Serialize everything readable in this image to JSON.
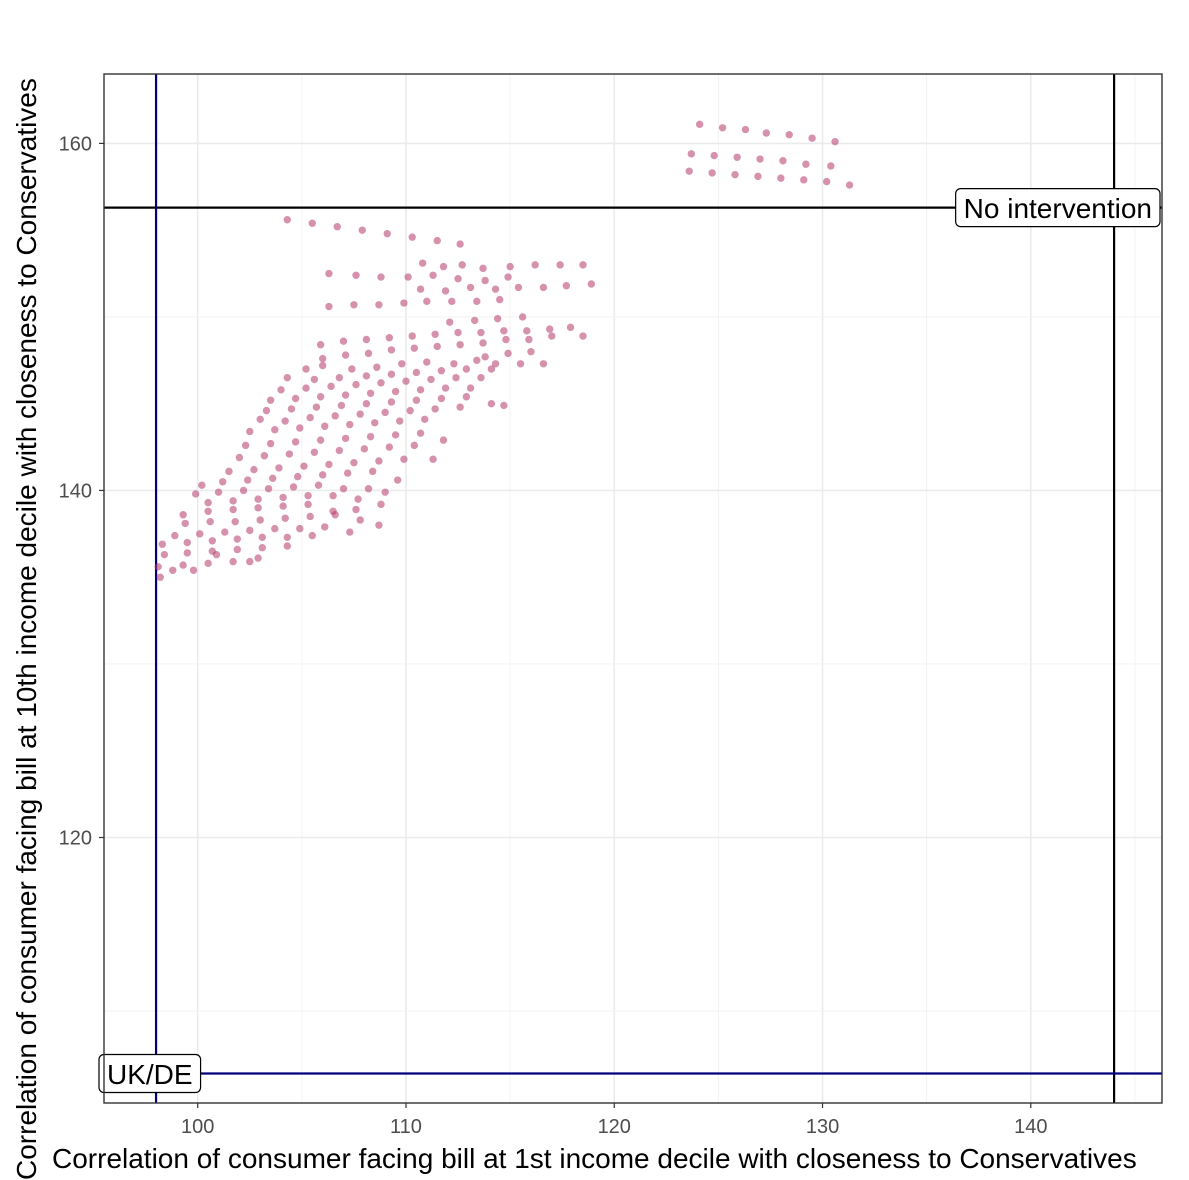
{
  "chart_data": {
    "type": "scatter",
    "title": "",
    "xlabel": "Correlation of consumer facing bill at 1st income decile with closeness to Conservatives",
    "ylabel": "Correlation of consumer facing bill at 10th income decile with closeness to Conservatives",
    "xlim": [
      95.5,
      146.3
    ],
    "ylim": [
      104.7,
      164.0
    ],
    "xticks": [
      100,
      110,
      120,
      130,
      140
    ],
    "yticks": [
      120,
      140,
      160
    ],
    "grid": true,
    "point_color": "#b5386a",
    "reference_lines": [
      {
        "label": "No intervention",
        "x": 144.0,
        "y": 156.3,
        "color": "#000000"
      },
      {
        "label": "UK/DE",
        "x": 98.0,
        "y": 106.4,
        "color": "#00007f"
      }
    ],
    "series": [
      {
        "points": [
          [
            124.1,
            161.1
          ],
          [
            125.2,
            160.9
          ],
          [
            126.3,
            160.8
          ],
          [
            127.3,
            160.6
          ],
          [
            128.4,
            160.5
          ],
          [
            129.5,
            160.3
          ],
          [
            130.6,
            160.1
          ],
          [
            123.7,
            159.4
          ],
          [
            124.8,
            159.3
          ],
          [
            125.9,
            159.2
          ],
          [
            127.0,
            159.1
          ],
          [
            128.1,
            159.0
          ],
          [
            129.2,
            158.8
          ],
          [
            130.4,
            158.7
          ],
          [
            123.6,
            158.4
          ],
          [
            124.7,
            158.3
          ],
          [
            125.8,
            158.2
          ],
          [
            126.9,
            158.1
          ],
          [
            128.0,
            158.0
          ],
          [
            129.1,
            157.9
          ],
          [
            130.2,
            157.8
          ],
          [
            131.3,
            157.6
          ],
          [
            104.3,
            155.6
          ],
          [
            105.5,
            155.4
          ],
          [
            106.7,
            155.2
          ],
          [
            107.9,
            155.0
          ],
          [
            109.1,
            154.8
          ],
          [
            110.3,
            154.6
          ],
          [
            111.5,
            154.4
          ],
          [
            112.6,
            154.2
          ],
          [
            110.8,
            153.1
          ],
          [
            111.8,
            152.9
          ],
          [
            112.7,
            153.0
          ],
          [
            113.7,
            152.8
          ],
          [
            115.0,
            152.9
          ],
          [
            116.2,
            153.0
          ],
          [
            117.4,
            153.0
          ],
          [
            118.5,
            153.0
          ],
          [
            106.3,
            152.5
          ],
          [
            107.6,
            152.4
          ],
          [
            108.8,
            152.3
          ],
          [
            110.1,
            152.3
          ],
          [
            111.3,
            152.4
          ],
          [
            112.5,
            152.2
          ],
          [
            113.8,
            152.1
          ],
          [
            114.9,
            152.3
          ],
          [
            110.7,
            151.6
          ],
          [
            111.9,
            151.5
          ],
          [
            113.1,
            151.7
          ],
          [
            114.3,
            151.6
          ],
          [
            115.4,
            151.7
          ],
          [
            116.6,
            151.7
          ],
          [
            117.7,
            151.8
          ],
          [
            118.9,
            151.9
          ],
          [
            106.3,
            150.6
          ],
          [
            107.5,
            150.7
          ],
          [
            108.7,
            150.7
          ],
          [
            109.9,
            150.8
          ],
          [
            111.0,
            150.9
          ],
          [
            112.2,
            150.9
          ],
          [
            113.4,
            150.9
          ],
          [
            114.5,
            151.0
          ],
          [
            112.1,
            149.7
          ],
          [
            113.3,
            149.8
          ],
          [
            114.4,
            149.9
          ],
          [
            115.6,
            150.0
          ],
          [
            105.9,
            148.4
          ],
          [
            107.0,
            148.6
          ],
          [
            108.1,
            148.7
          ],
          [
            109.2,
            148.8
          ],
          [
            110.3,
            148.9
          ],
          [
            111.4,
            149.0
          ],
          [
            112.5,
            149.1
          ],
          [
            113.6,
            149.1
          ],
          [
            114.7,
            149.2
          ],
          [
            115.8,
            149.2
          ],
          [
            116.9,
            149.3
          ],
          [
            117.9,
            149.4
          ],
          [
            118.5,
            148.9
          ],
          [
            106.0,
            147.6
          ],
          [
            107.1,
            147.8
          ],
          [
            108.2,
            147.9
          ],
          [
            109.3,
            148.1
          ],
          [
            110.4,
            148.2
          ],
          [
            111.5,
            148.3
          ],
          [
            112.6,
            148.4
          ],
          [
            113.7,
            148.5
          ],
          [
            114.8,
            148.7
          ],
          [
            115.9,
            148.7
          ],
          [
            117.0,
            148.9
          ],
          [
            113.8,
            147.7
          ],
          [
            114.9,
            147.9
          ],
          [
            116.0,
            148.0
          ],
          [
            114.3,
            147.3
          ],
          [
            115.5,
            147.3
          ],
          [
            116.6,
            147.3
          ],
          [
            105.2,
            147.0
          ],
          [
            106.0,
            147.2
          ],
          [
            107.4,
            147.0
          ],
          [
            108.6,
            147.1
          ],
          [
            109.8,
            147.3
          ],
          [
            111.0,
            147.4
          ],
          [
            112.3,
            147.3
          ],
          [
            113.4,
            147.5
          ],
          [
            104.3,
            146.5
          ],
          [
            105.6,
            146.4
          ],
          [
            106.8,
            146.5
          ],
          [
            108.1,
            146.6
          ],
          [
            109.3,
            146.7
          ],
          [
            110.5,
            146.8
          ],
          [
            111.7,
            146.9
          ],
          [
            112.9,
            147.0
          ],
          [
            114.1,
            147.0
          ],
          [
            104.0,
            145.8
          ],
          [
            105.2,
            145.9
          ],
          [
            106.4,
            146.0
          ],
          [
            107.6,
            146.1
          ],
          [
            108.8,
            146.2
          ],
          [
            110.0,
            146.3
          ],
          [
            111.2,
            146.4
          ],
          [
            112.4,
            146.5
          ],
          [
            113.6,
            146.5
          ],
          [
            103.5,
            145.2
          ],
          [
            104.7,
            145.3
          ],
          [
            105.9,
            145.4
          ],
          [
            107.1,
            145.5
          ],
          [
            108.3,
            145.6
          ],
          [
            109.5,
            145.7
          ],
          [
            110.7,
            145.8
          ],
          [
            111.9,
            145.9
          ],
          [
            113.1,
            145.9
          ],
          [
            103.3,
            144.6
          ],
          [
            104.5,
            144.7
          ],
          [
            105.7,
            144.8
          ],
          [
            106.9,
            144.9
          ],
          [
            108.1,
            145.0
          ],
          [
            109.3,
            145.1
          ],
          [
            110.5,
            145.2
          ],
          [
            111.7,
            145.3
          ],
          [
            112.9,
            145.4
          ],
          [
            114.1,
            145.0
          ],
          [
            114.7,
            144.9
          ],
          [
            103.0,
            144.1
          ],
          [
            104.2,
            144.0
          ],
          [
            105.4,
            144.2
          ],
          [
            106.6,
            144.3
          ],
          [
            107.8,
            144.4
          ],
          [
            109.0,
            144.5
          ],
          [
            110.2,
            144.6
          ],
          [
            111.4,
            144.7
          ],
          [
            112.6,
            144.8
          ],
          [
            102.5,
            143.4
          ],
          [
            103.7,
            143.5
          ],
          [
            104.9,
            143.6
          ],
          [
            106.1,
            143.7
          ],
          [
            107.3,
            143.8
          ],
          [
            108.5,
            143.9
          ],
          [
            109.7,
            144.0
          ],
          [
            110.9,
            144.1
          ],
          [
            102.3,
            142.6
          ],
          [
            103.5,
            142.7
          ],
          [
            104.7,
            142.8
          ],
          [
            105.9,
            142.9
          ],
          [
            107.1,
            143.0
          ],
          [
            108.3,
            143.1
          ],
          [
            109.5,
            143.2
          ],
          [
            110.7,
            143.3
          ],
          [
            111.8,
            142.9
          ],
          [
            102.0,
            141.9
          ],
          [
            103.2,
            142.0
          ],
          [
            104.4,
            142.1
          ],
          [
            105.6,
            142.2
          ],
          [
            106.8,
            142.3
          ],
          [
            108.0,
            142.4
          ],
          [
            109.2,
            142.5
          ],
          [
            110.4,
            142.6
          ],
          [
            111.3,
            141.8
          ],
          [
            101.5,
            141.1
          ],
          [
            102.7,
            141.2
          ],
          [
            103.9,
            141.3
          ],
          [
            105.1,
            141.4
          ],
          [
            106.3,
            141.5
          ],
          [
            107.5,
            141.6
          ],
          [
            108.7,
            141.7
          ],
          [
            109.9,
            141.8
          ],
          [
            100.2,
            140.3
          ],
          [
            101.2,
            140.5
          ],
          [
            102.4,
            140.6
          ],
          [
            103.6,
            140.7
          ],
          [
            104.8,
            140.8
          ],
          [
            106.0,
            140.9
          ],
          [
            107.2,
            141.0
          ],
          [
            108.4,
            141.1
          ],
          [
            109.6,
            140.6
          ],
          [
            99.9,
            139.8
          ],
          [
            101.0,
            139.9
          ],
          [
            102.2,
            140.0
          ],
          [
            103.4,
            140.1
          ],
          [
            104.6,
            140.2
          ],
          [
            105.8,
            140.3
          ],
          [
            107.0,
            140.1
          ],
          [
            108.2,
            140.1
          ],
          [
            109.0,
            139.9
          ],
          [
            100.5,
            139.3
          ],
          [
            101.7,
            139.4
          ],
          [
            102.9,
            139.5
          ],
          [
            104.1,
            139.6
          ],
          [
            105.3,
            139.7
          ],
          [
            106.5,
            139.7
          ],
          [
            107.7,
            139.5
          ],
          [
            108.8,
            139.2
          ],
          [
            99.3,
            138.6
          ],
          [
            100.5,
            138.8
          ],
          [
            101.7,
            138.9
          ],
          [
            102.9,
            139.0
          ],
          [
            104.1,
            139.1
          ],
          [
            105.3,
            139.2
          ],
          [
            106.5,
            138.8
          ],
          [
            107.6,
            138.9
          ],
          [
            99.4,
            138.1
          ],
          [
            100.6,
            138.2
          ],
          [
            101.8,
            138.2
          ],
          [
            103.0,
            138.3
          ],
          [
            104.2,
            138.4
          ],
          [
            105.4,
            138.5
          ],
          [
            106.6,
            138.6
          ],
          [
            107.8,
            138.3
          ],
          [
            108.7,
            138.0
          ],
          [
            98.9,
            137.4
          ],
          [
            100.1,
            137.5
          ],
          [
            101.3,
            137.6
          ],
          [
            102.5,
            137.7
          ],
          [
            103.7,
            137.8
          ],
          [
            104.9,
            137.8
          ],
          [
            106.1,
            137.9
          ],
          [
            107.3,
            137.6
          ],
          [
            98.3,
            136.9
          ],
          [
            99.5,
            137.0
          ],
          [
            100.7,
            137.1
          ],
          [
            101.9,
            137.2
          ],
          [
            103.1,
            137.3
          ],
          [
            104.3,
            137.3
          ],
          [
            105.5,
            137.4
          ],
          [
            98.4,
            136.3
          ],
          [
            99.5,
            136.4
          ],
          [
            100.7,
            136.5
          ],
          [
            101.9,
            136.6
          ],
          [
            103.1,
            136.7
          ],
          [
            104.3,
            136.8
          ],
          [
            98.1,
            135.6
          ],
          [
            99.3,
            135.7
          ],
          [
            100.5,
            135.8
          ],
          [
            101.7,
            135.9
          ],
          [
            102.9,
            136.1
          ],
          [
            98.2,
            135.0
          ],
          [
            98.8,
            135.4
          ],
          [
            99.8,
            135.4
          ],
          [
            100.9,
            136.3
          ],
          [
            102.5,
            135.9
          ]
        ]
      }
    ]
  }
}
